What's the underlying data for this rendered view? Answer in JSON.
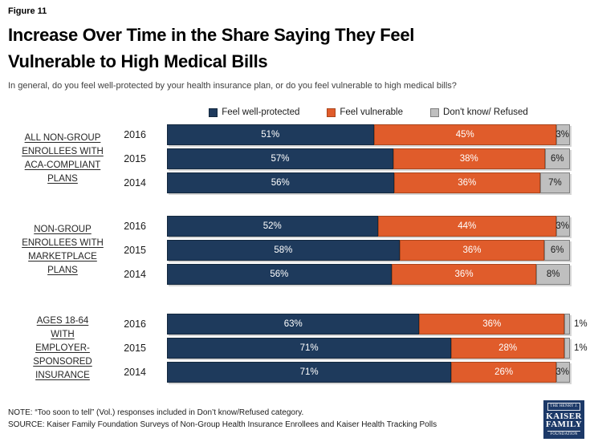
{
  "page": {
    "figure_label": "Figure 11",
    "title_lines": [
      "Increase Over Time in the Share Saying They Feel",
      "Vulnerable to High Medical Bills"
    ],
    "subtitle": "In general, do you feel well-protected by your health insurance plan, or do you feel vulnerable to high medical bills?",
    "note": "NOTE: “Too soon to tell” (Vol.) responses included in Don’t know/Refused category.",
    "source": "SOURCE: Kaiser Family Foundation Surveys of Non-Group Health Insurance Enrollees and Kaiser Health Tracking Polls"
  },
  "logo": {
    "top": "THE HENRY J.",
    "name1": "KAISER",
    "name2": "FAMILY",
    "bottom": "FOUNDATION",
    "background": "#1C3968"
  },
  "chart_data": {
    "type": "bar",
    "orientation": "horizontal",
    "stacked": true,
    "unit": "percent",
    "xlim": [
      0,
      100
    ],
    "legend_position": "top",
    "title": "Increase Over Time in the Share Saying They Feel Vulnerable to High Medical Bills",
    "series": [
      {
        "name": "Feel well-protected",
        "color": "#1E3A5C",
        "border_color": "#14293F",
        "label_color": "#FFFFFF"
      },
      {
        "name": "Feel vulnerable",
        "color": "#E05C2B",
        "border_color": "#AA461D",
        "label_color": "#FFFFFF"
      },
      {
        "name": "Don't know/ Refused",
        "color": "#BFBFBF",
        "border_color": "#7F7F7F",
        "label_color": "#1A1A1A"
      }
    ],
    "groups": [
      {
        "label_lines": [
          "ALL NON-GROUP",
          "ENROLLEES WITH",
          "ACA-COMPLIANT",
          "PLANS"
        ],
        "rows": [
          {
            "category": "2016",
            "values": [
              51,
              45,
              3
            ]
          },
          {
            "category": "2015",
            "values": [
              57,
              38,
              6
            ]
          },
          {
            "category": "2014",
            "values": [
              56,
              36,
              7
            ]
          }
        ]
      },
      {
        "label_lines": [
          "NON-GROUP",
          "ENROLLEES WITH",
          "MARKETPLACE",
          "PLANS"
        ],
        "rows": [
          {
            "category": "2016",
            "values": [
              52,
              44,
              3
            ]
          },
          {
            "category": "2015",
            "values": [
              58,
              36,
              6
            ]
          },
          {
            "category": "2014",
            "values": [
              56,
              36,
              8
            ]
          }
        ]
      },
      {
        "label_lines": [
          "AGES 18-64",
          "WITH",
          "EMPLOYER-",
          "SPONSORED",
          "INSURANCE"
        ],
        "rows": [
          {
            "category": "2016",
            "values": [
              63,
              36,
              1
            ]
          },
          {
            "category": "2015",
            "values": [
              71,
              28,
              1
            ]
          },
          {
            "category": "2014",
            "values": [
              71,
              26,
              3
            ]
          }
        ]
      }
    ]
  }
}
